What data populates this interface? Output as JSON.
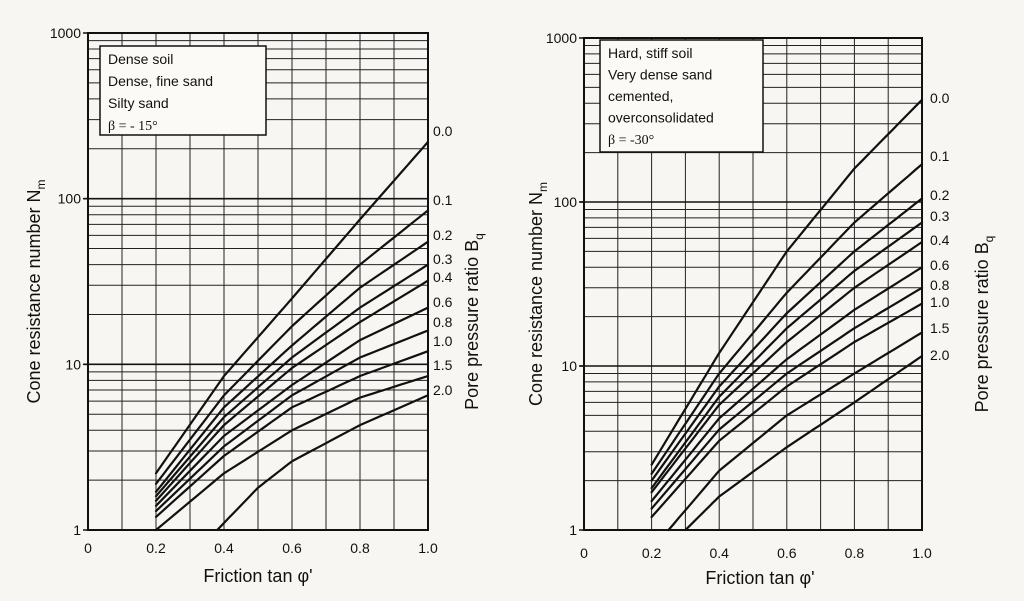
{
  "chart_data": [
    {
      "type": "line",
      "xlabel": "Friction tan φ'",
      "ylabel": "Cone resistance number N",
      "ylabel_sub": "m",
      "right_label": "Pore pressure ratio B",
      "right_label_sub": "q",
      "x_ticks": [
        "0",
        "0.2",
        "0.4",
        "0.6",
        "0.8",
        "1.0"
      ],
      "y_ticks": [
        "1",
        "10",
        "100",
        "1000"
      ],
      "xlim": [
        0,
        1.0
      ],
      "ylim": [
        1,
        1000
      ],
      "y_scale": "log",
      "grid": true,
      "legend_box": [
        "Dense  soil",
        "Dense, fine sand",
        "Silty sand",
        "β = - 15°"
      ],
      "series": [
        {
          "name": "0.0",
          "x": [
            0.2,
            0.4,
            0.6,
            0.8,
            1.0
          ],
          "y": [
            2.2,
            8.5,
            25,
            75,
            220
          ]
        },
        {
          "name": "0.1",
          "x": [
            0.2,
            0.4,
            0.6,
            0.8,
            1.0
          ],
          "y": [
            1.9,
            6.5,
            17,
            40,
            85
          ]
        },
        {
          "name": "0.2",
          "x": [
            0.2,
            0.4,
            0.6,
            0.8,
            1.0
          ],
          "y": [
            1.7,
            5.5,
            13,
            29,
            55
          ]
        },
        {
          "name": "0.3",
          "x": [
            0.2,
            0.4,
            0.6,
            0.8,
            1.0
          ],
          "y": [
            1.6,
            4.8,
            11,
            22,
            40
          ]
        },
        {
          "name": "0.4",
          "x": [
            0.2,
            0.4,
            0.6,
            0.8,
            1.0
          ],
          "y": [
            1.5,
            4.3,
            9.5,
            18,
            32
          ]
        },
        {
          "name": "0.6",
          "x": [
            0.2,
            0.4,
            0.6,
            0.8,
            1.0
          ],
          "y": [
            1.4,
            3.7,
            7.5,
            14,
            22
          ]
        },
        {
          "name": "0.8",
          "x": [
            0.2,
            0.4,
            0.6,
            0.8,
            1.0
          ],
          "y": [
            1.3,
            3.2,
            6.5,
            11,
            16
          ]
        },
        {
          "name": "1.0",
          "x": [
            0.2,
            0.4,
            0.6,
            0.8,
            1.0
          ],
          "y": [
            1.2,
            2.8,
            5.5,
            8.5,
            12
          ]
        },
        {
          "name": "1.5",
          "x": [
            0.2,
            0.4,
            0.6,
            0.8,
            1.0
          ],
          "y": [
            1.0,
            2.2,
            4.0,
            6.3,
            8.5
          ]
        },
        {
          "name": "2.0",
          "x": [
            0.38,
            0.5,
            0.6,
            0.8,
            1.0
          ],
          "y": [
            1.0,
            1.8,
            2.6,
            4.3,
            6.5
          ]
        }
      ]
    },
    {
      "type": "line",
      "xlabel": "Friction tan φ'",
      "ylabel": "Cone resistance number N",
      "ylabel_sub": "m",
      "right_label": "Pore pressure ratio B",
      "right_label_sub": "q",
      "x_ticks": [
        "0",
        "0.2",
        "0.4",
        "0.6",
        "0.8",
        "1.0"
      ],
      "y_ticks": [
        "1",
        "10",
        "100",
        "1000"
      ],
      "xlim": [
        0,
        1.0
      ],
      "ylim": [
        1,
        1000
      ],
      "y_scale": "log",
      "grid": true,
      "legend_box": [
        "Hard, stiff soil",
        "Very dense sand",
        "cemented,",
        "overconsolidated",
        "β = -30°"
      ],
      "series": [
        {
          "name": "0.0",
          "x": [
            0.2,
            0.4,
            0.6,
            0.8,
            1.0
          ],
          "y": [
            2.5,
            12,
            50,
            160,
            420
          ]
        },
        {
          "name": "0.1",
          "x": [
            0.2,
            0.4,
            0.6,
            0.8,
            1.0
          ],
          "y": [
            2.2,
            9,
            28,
            75,
            170
          ]
        },
        {
          "name": "0.2",
          "x": [
            0.2,
            0.4,
            0.6,
            0.8,
            1.0
          ],
          "y": [
            2.0,
            7.5,
            21,
            50,
            105
          ]
        },
        {
          "name": "0.3",
          "x": [
            0.2,
            0.4,
            0.6,
            0.8,
            1.0
          ],
          "y": [
            1.8,
            6.5,
            17,
            38,
            75
          ]
        },
        {
          "name": "0.4",
          "x": [
            0.2,
            0.4,
            0.6,
            0.8,
            1.0
          ],
          "y": [
            1.7,
            5.8,
            14,
            30,
            57
          ]
        },
        {
          "name": "0.6",
          "x": [
            0.2,
            0.4,
            0.6,
            0.8,
            1.0
          ],
          "y": [
            1.5,
            4.8,
            11,
            22,
            40
          ]
        },
        {
          "name": "0.8",
          "x": [
            0.2,
            0.4,
            0.6,
            0.8,
            1.0
          ],
          "y": [
            1.35,
            4.1,
            9,
            17,
            30
          ]
        },
        {
          "name": "1.0",
          "x": [
            0.2,
            0.4,
            0.6,
            0.8,
            1.0
          ],
          "y": [
            1.2,
            3.5,
            7.5,
            14,
            24
          ]
        },
        {
          "name": "1.5",
          "x": [
            0.25,
            0.4,
            0.6,
            0.8,
            1.0
          ],
          "y": [
            1.0,
            2.3,
            5.0,
            9,
            16
          ]
        },
        {
          "name": "2.0",
          "x": [
            0.3,
            0.4,
            0.6,
            0.8,
            1.0
          ],
          "y": [
            1.0,
            1.6,
            3.2,
            6,
            11.5
          ]
        }
      ]
    }
  ]
}
